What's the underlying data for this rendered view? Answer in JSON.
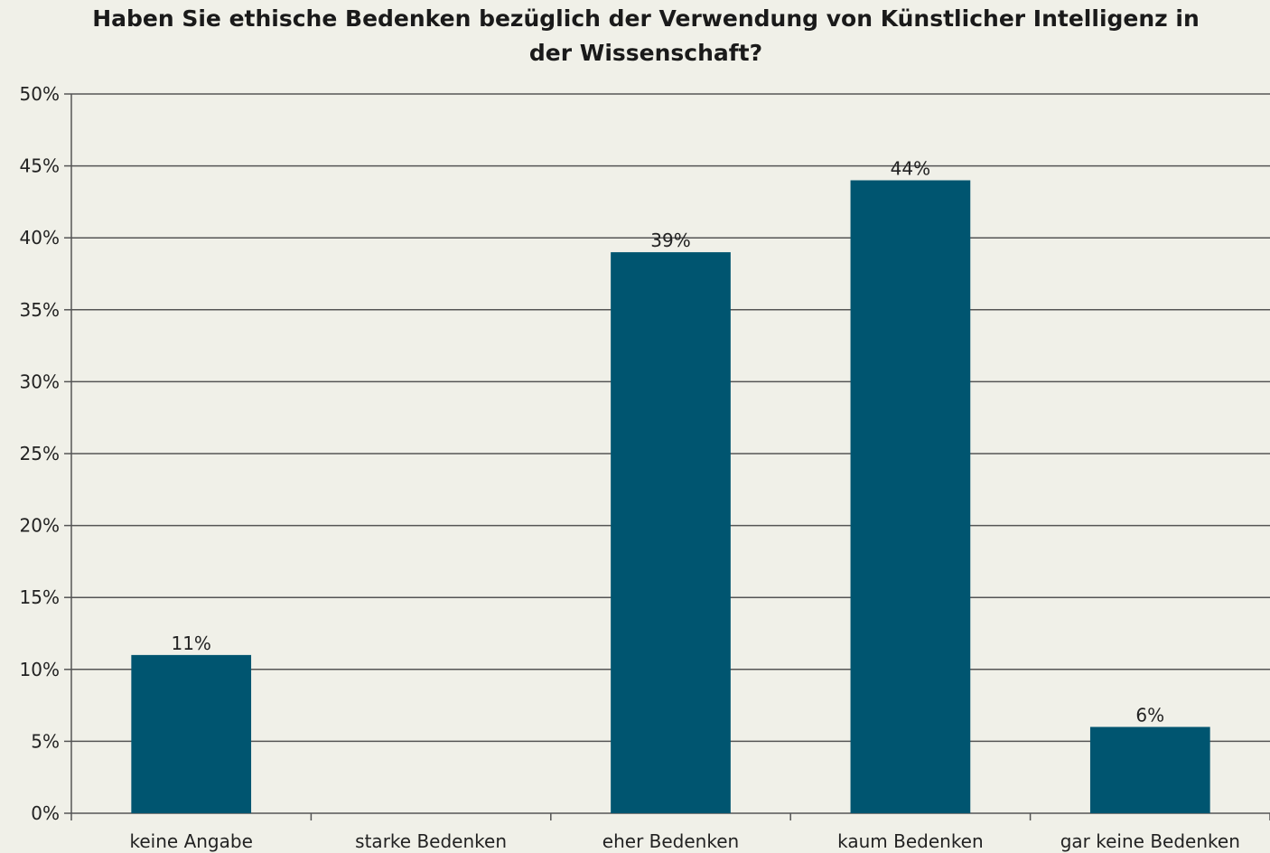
{
  "chart_data": {
    "type": "bar",
    "title": "Haben Sie ethische Bedenken bezüglich der Verwendung von Künstlicher Intelligenz in\nder Wissenschaft?",
    "xlabel": "",
    "ylabel": "",
    "categories": [
      "keine Angabe",
      "starke Bedenken",
      "eher Bedenken",
      "kaum Bedenken",
      "gar keine Bedenken"
    ],
    "values": [
      11,
      0,
      39,
      44,
      6
    ],
    "data_labels": [
      "11%",
      "",
      "39%",
      "44%",
      "6%"
    ],
    "ylim": [
      0,
      50
    ],
    "ytick_values": [
      0,
      5,
      10,
      15,
      20,
      25,
      30,
      35,
      40,
      45,
      50
    ],
    "ytick_labels": [
      "0%",
      "5%",
      "10%",
      "15%",
      "20%",
      "25%",
      "30%",
      "35%",
      "40%",
      "45%",
      "50%"
    ],
    "grid": true,
    "legend": "none",
    "colors": {
      "bar": "#005570",
      "background": "#f0f0e8",
      "grid": "#555555"
    }
  }
}
